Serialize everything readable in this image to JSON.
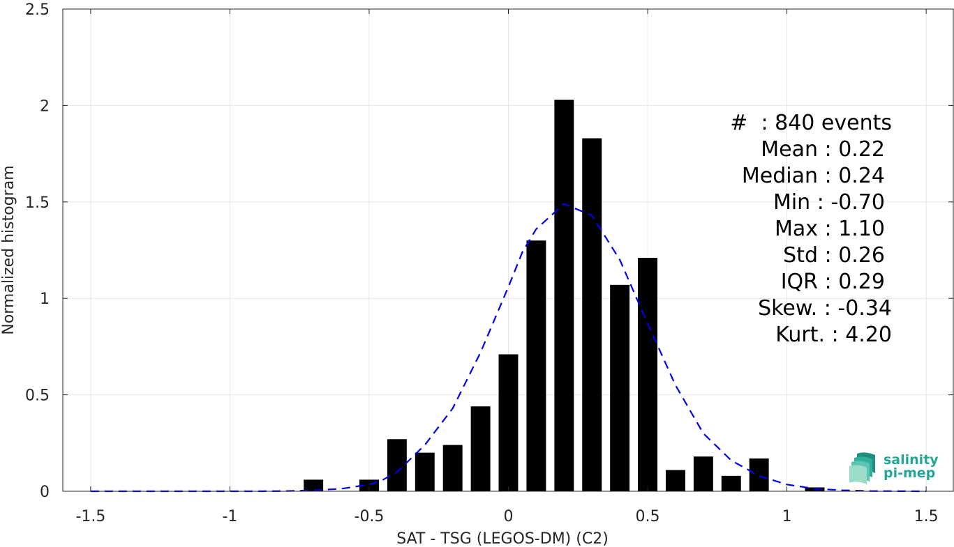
{
  "chart_data": {
    "type": "bar",
    "xlabel": "SAT - TSG (LEGOS-DM) (C2)",
    "ylabel": "Normalized histogram",
    "xlim": [
      -1.6,
      1.6
    ],
    "ylim": [
      0,
      2.5
    ],
    "xticks": [
      -1.5,
      -1,
      -0.5,
      0,
      0.5,
      1,
      1.5
    ],
    "xtick_labels": [
      "-1.5",
      "-1",
      "-0.5",
      "0",
      "0.5",
      "1",
      "1.5"
    ],
    "yticks": [
      0,
      0.5,
      1,
      1.5,
      2,
      2.5
    ],
    "ytick_labels": [
      "0",
      "0.5",
      "1",
      "1.5",
      "2",
      "2.5"
    ],
    "grid": true,
    "bar_width": 0.07,
    "bars": {
      "x": [
        -0.7,
        -0.5,
        -0.4,
        -0.3,
        -0.2,
        -0.1,
        0.0,
        0.1,
        0.2,
        0.3,
        0.4,
        0.5,
        0.6,
        0.7,
        0.8,
        0.9,
        1.1
      ],
      "values": [
        0.06,
        0.06,
        0.27,
        0.2,
        0.24,
        0.44,
        0.71,
        1.3,
        2.03,
        1.83,
        1.07,
        1.21,
        0.11,
        0.18,
        0.08,
        0.17,
        0.02
      ],
      "color": "#000000"
    },
    "fit_curve": {
      "style": "dashed",
      "color": "#0000ee",
      "x": [
        -1.5,
        -1.3,
        -1.1,
        -0.9,
        -0.8,
        -0.7,
        -0.6,
        -0.5,
        -0.45,
        -0.4,
        -0.3,
        -0.2,
        -0.1,
        0.0,
        0.05,
        0.1,
        0.2,
        0.3,
        0.4,
        0.5,
        0.6,
        0.7,
        0.8,
        0.9,
        1.0,
        1.1,
        1.2,
        1.3,
        1.5
      ],
      "y": [
        0.0,
        0.0,
        0.0,
        0.0,
        0.001,
        0.005,
        0.013,
        0.035,
        0.06,
        0.1,
        0.24,
        0.43,
        0.72,
        1.06,
        1.24,
        1.36,
        1.49,
        1.43,
        1.2,
        0.87,
        0.55,
        0.3,
        0.16,
        0.08,
        0.035,
        0.013,
        0.005,
        0.001,
        0.0
      ]
    }
  },
  "stats": [
    "#  : 840 events",
    "Mean : 0.22",
    "Median : 0.24",
    "Min : -0.70",
    "Max : 1.10",
    "Std : 0.26",
    "IQR : 0.29",
    "Skew. : -0.34",
    "Kurt. : 4.20"
  ],
  "logo": {
    "line1": "salinity",
    "line2": "pi-mep",
    "color": "#27a594"
  }
}
